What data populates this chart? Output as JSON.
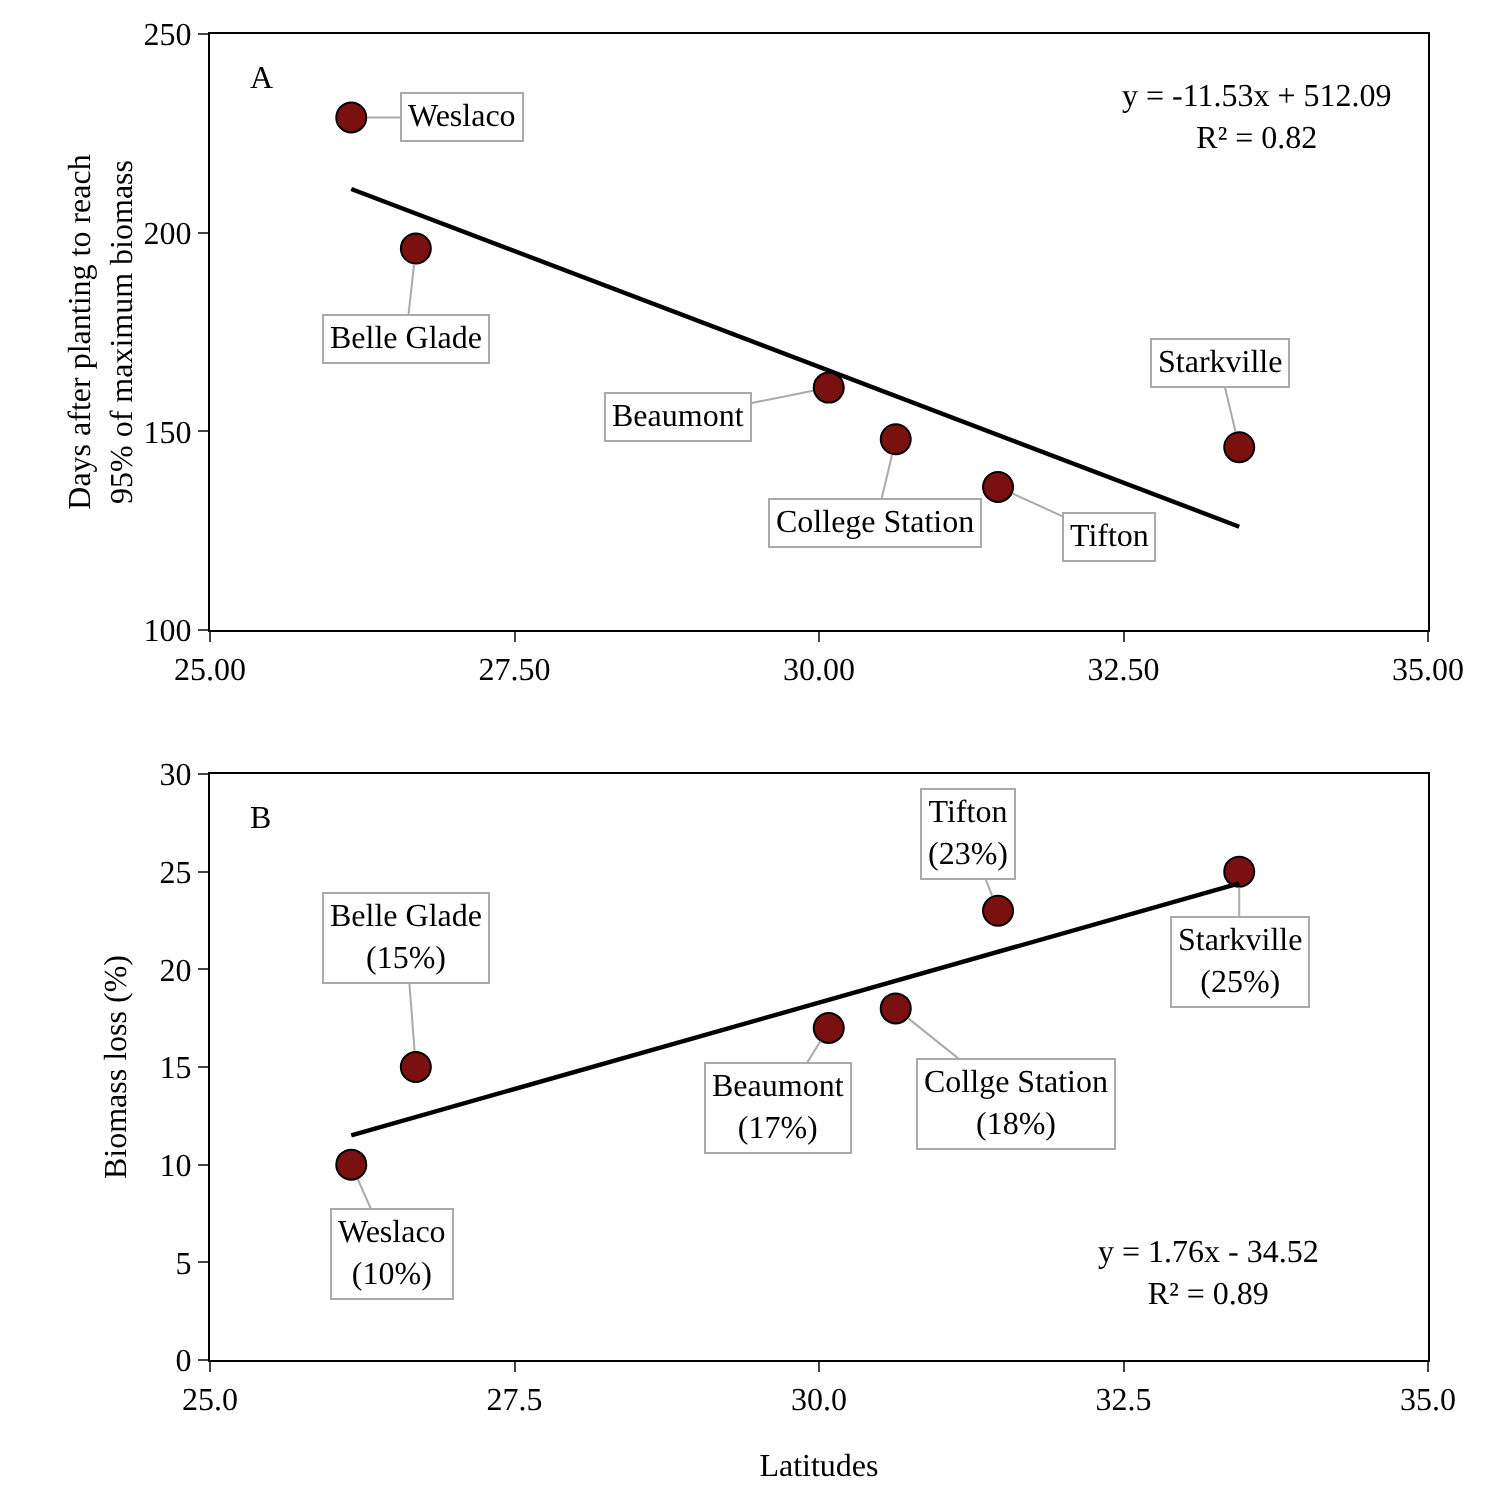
{
  "chart_data": [
    {
      "type": "scatter",
      "ylabel": "Days after planting to reach\n95% of maximum biomass",
      "xlim": [
        25,
        35
      ],
      "xticks": [
        {
          "value": 25,
          "label": "25.00"
        },
        {
          "value": 27.5,
          "label": "27.50"
        },
        {
          "value": 30,
          "label": "30.00"
        },
        {
          "value": 32.5,
          "label": "32.50"
        },
        {
          "value": 35,
          "label": "35.00"
        }
      ],
      "ylim": [
        100,
        250
      ],
      "yticks": [
        100,
        150,
        200,
        250
      ],
      "series": [
        {
          "marker": "circle",
          "color": "#7a1010",
          "x": [
            26.16,
            26.69,
            30.08,
            30.63,
            31.47,
            33.45
          ],
          "values": [
            229,
            196,
            161,
            148,
            136,
            146
          ]
        },
        {
          "type": "line",
          "marker": "none",
          "color": "#000000",
          "x": [
            26.16,
            33.45
          ],
          "values": [
            211,
            126
          ]
        }
      ],
      "annotations": [
        "A",
        "y = -11.53x + 512.09\nR² = 0.82",
        {
          "text": "Weslaco",
          "x": 26.16,
          "y": 229
        },
        {
          "text": "Belle Glade",
          "x": 26.69,
          "y": 196
        },
        {
          "text": "Beaumont",
          "x": 30.08,
          "y": 161
        },
        {
          "text": "College Station",
          "x": 30.63,
          "y": 148
        },
        {
          "text": "Tifton",
          "x": 31.47,
          "y": 136
        },
        {
          "text": "Starkville",
          "x": 33.45,
          "y": 146
        }
      ]
    },
    {
      "type": "scatter",
      "xlabel": "Latitudes",
      "ylabel": "Biomass loss (%)",
      "xlim": [
        25,
        35
      ],
      "xticks": [
        {
          "value": 25,
          "label": "25.0"
        },
        {
          "value": 27.5,
          "label": "27.5"
        },
        {
          "value": 30,
          "label": "30.0"
        },
        {
          "value": 32.5,
          "label": "32.5"
        },
        {
          "value": 35,
          "label": "35.0"
        }
      ],
      "ylim": [
        0,
        30
      ],
      "yticks": [
        0,
        5,
        10,
        15,
        20,
        25,
        30
      ],
      "series": [
        {
          "marker": "circle",
          "color": "#7a1010",
          "x": [
            26.16,
            26.69,
            30.08,
            30.63,
            31.47,
            33.45
          ],
          "values": [
            10,
            15,
            17,
            18,
            23,
            25
          ]
        },
        {
          "type": "line",
          "marker": "none",
          "color": "#000000",
          "x": [
            26.16,
            33.45
          ],
          "values": [
            11.5,
            24.4
          ]
        }
      ],
      "annotations": [
        "B",
        "y = 1.76x - 34.52\nR² = 0.89",
        {
          "text": "Weslaco\n(10%)",
          "x": 26.16,
          "y": 10
        },
        {
          "text": "Belle Glade\n(15%)",
          "x": 26.69,
          "y": 15
        },
        {
          "text": "Beaumont\n(17%)",
          "x": 30.08,
          "y": 17
        },
        {
          "text": "Collge Station\n(18%)",
          "x": 30.63,
          "y": 18
        },
        {
          "text": "Tifton\n(23%)",
          "x": 31.47,
          "y": 23
        },
        {
          "text": "Starkville\n(25%)",
          "x": 33.45,
          "y": 25
        }
      ]
    }
  ]
}
